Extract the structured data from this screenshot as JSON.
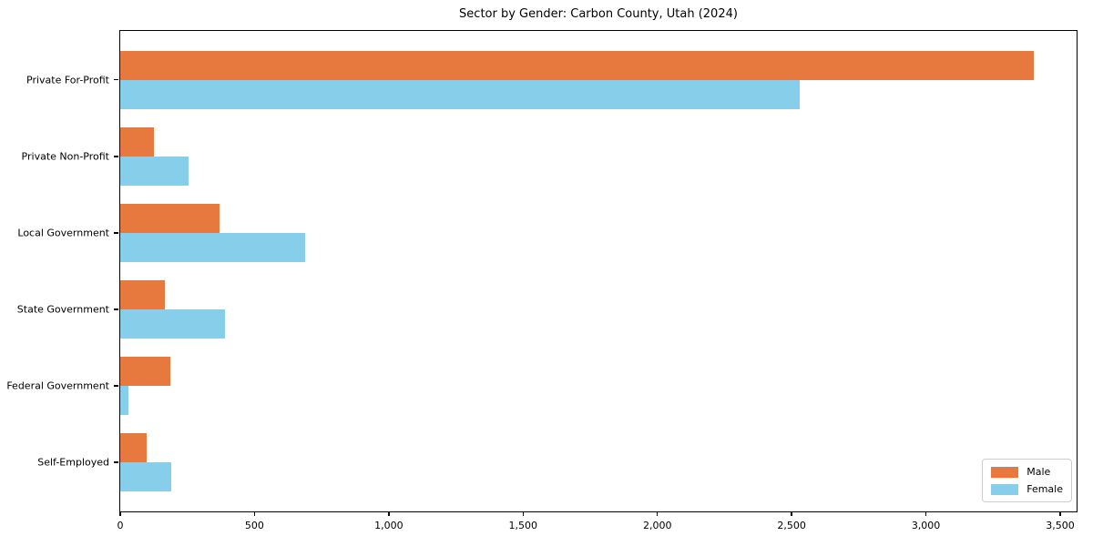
{
  "title": "Sector by Gender: Carbon County, Utah (2024)",
  "chart_data": {
    "type": "bar",
    "orientation": "horizontal",
    "title": "Sector by Gender: Carbon County, Utah (2024)",
    "categories": [
      "Private For-Profit",
      "Private Non-Profit",
      "Local Government",
      "State Government",
      "Federal Government",
      "Self-Employed"
    ],
    "series": [
      {
        "name": "Male",
        "color": "#e8793e",
        "values": [
          3400,
          125,
          370,
          165,
          185,
          100
        ]
      },
      {
        "name": "Female",
        "color": "#87ceeb",
        "values": [
          2530,
          255,
          690,
          390,
          30,
          190
        ]
      }
    ],
    "xlabel": "",
    "ylabel": "",
    "xlim": [
      0,
      3567
    ],
    "xticks": [
      0,
      500,
      1000,
      1500,
      2000,
      2500,
      3000,
      3500
    ],
    "xtick_labels": [
      "0",
      "500",
      "1,000",
      "1,500",
      "2,000",
      "2,500",
      "3,000",
      "3,500"
    ],
    "grid": false,
    "legend": {
      "position": "lower right",
      "items": [
        {
          "label": "Male",
          "color": "#e8793e"
        },
        {
          "label": "Female",
          "color": "#87ceeb"
        }
      ]
    }
  }
}
